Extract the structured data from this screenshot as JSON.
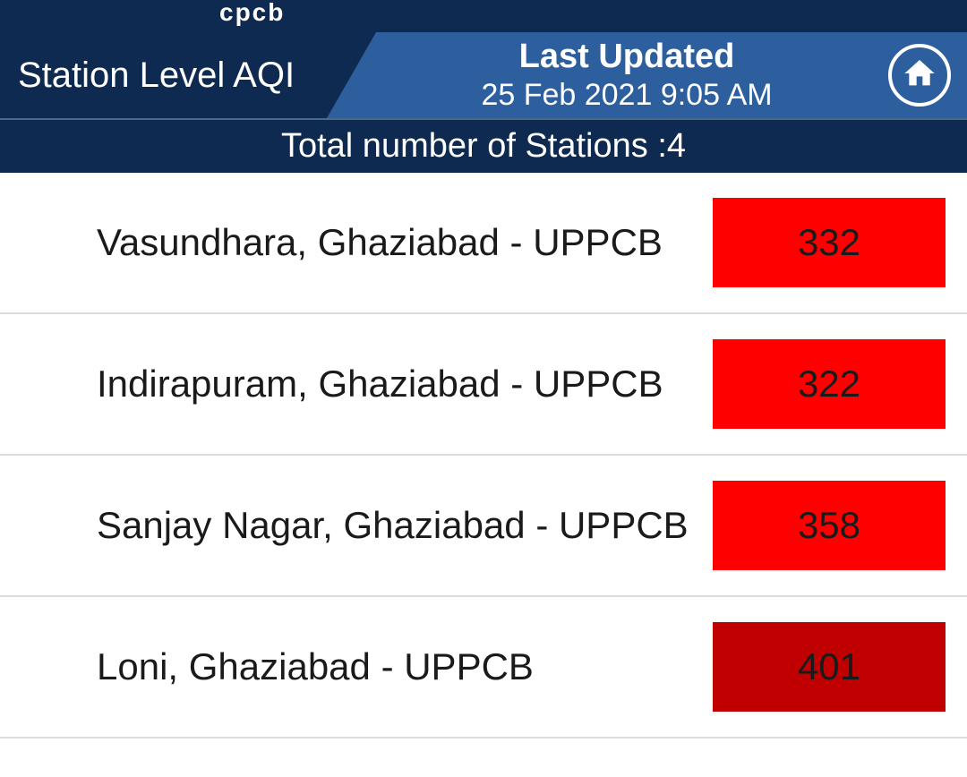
{
  "logo_text": "cpcb",
  "header": {
    "title": "Station Level AQI",
    "last_updated_label": "Last Updated",
    "last_updated_time": "25 Feb 2021 9:05 AM"
  },
  "subheader": {
    "text": "Total number of Stations :4"
  },
  "colors": {
    "top_bar_bg": "#0f2a50",
    "header_bg": "#2d5f9e",
    "header_left_bg": "#0f2a50",
    "subheader_bg": "#0f2a50",
    "text_white": "#ffffff",
    "text_dark": "#1a1a1a",
    "row_border": "#dcdcdc"
  },
  "stations": [
    {
      "name": "Vasundhara, Ghaziabad - UPPCB",
      "aqi": 332,
      "badge_bg": "#ff0000",
      "badge_text": "#1a1a1a"
    },
    {
      "name": "Indirapuram, Ghaziabad - UPPCB",
      "aqi": 322,
      "badge_bg": "#ff0000",
      "badge_text": "#1a1a1a"
    },
    {
      "name": "Sanjay Nagar, Ghaziabad - UPPCB",
      "aqi": 358,
      "badge_bg": "#ff0000",
      "badge_text": "#1a1a1a"
    },
    {
      "name": "Loni, Ghaziabad - UPPCB",
      "aqi": 401,
      "badge_bg": "#c00000",
      "badge_text": "#1a1a1a"
    }
  ]
}
